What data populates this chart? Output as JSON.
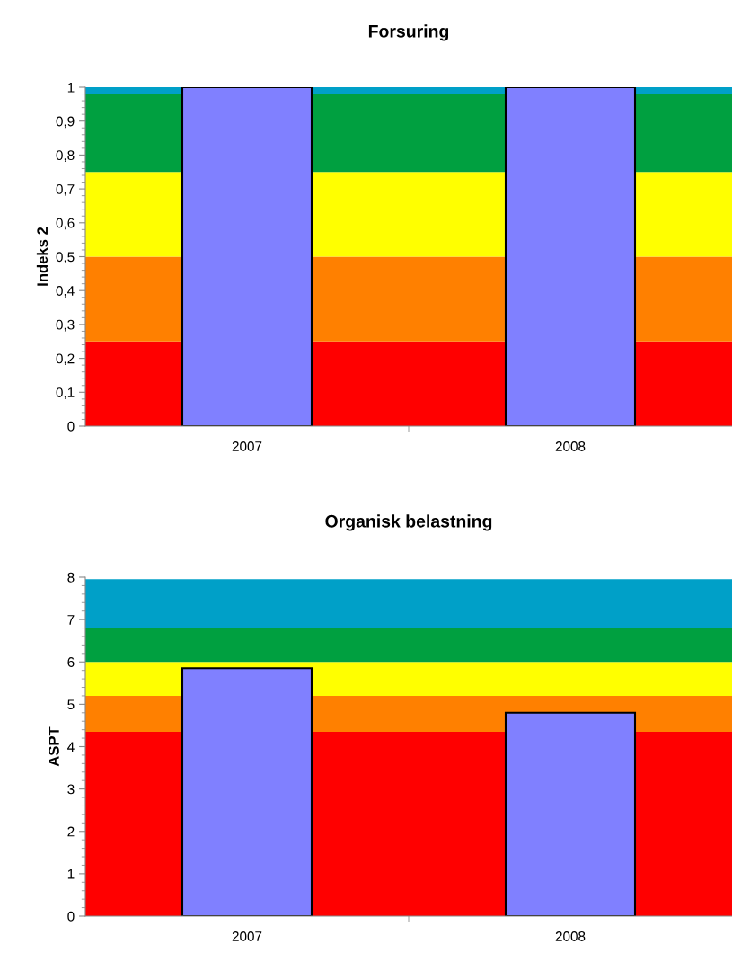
{
  "chart_data": [
    {
      "type": "bar",
      "title": "Forsuring",
      "ylabel": "Indeks 2",
      "categories": [
        "2007",
        "2008"
      ],
      "values": [
        1,
        1
      ],
      "color": "#8080ff",
      "ylim": [
        0,
        1
      ],
      "yticks": [
        0,
        {
          "value": 0.1,
          "label": "0,1"
        },
        {
          "value": 0.2,
          "label": "0,2"
        },
        {
          "value": 0.3,
          "label": "0,3"
        },
        {
          "value": 0.4,
          "label": "0,4"
        },
        {
          "value": 0.5,
          "label": "0,5"
        },
        {
          "value": 0.6,
          "label": "0,6"
        },
        {
          "value": 0.7,
          "label": "0,7"
        },
        {
          "value": 0.8,
          "label": "0,8"
        },
        {
          "value": 0.9,
          "label": "0,9"
        },
        1
      ],
      "grid": false,
      "bands": [
        {
          "axis": "y",
          "from": 0,
          "to": 0.25,
          "color": "#ff0000"
        },
        {
          "axis": "y",
          "from": 0.25,
          "to": 0.5,
          "color": "#ff8000"
        },
        {
          "axis": "y",
          "from": 0.5,
          "to": 0.75,
          "color": "#ffff00"
        },
        {
          "axis": "y",
          "from": 0.75,
          "to": 0.98,
          "color": "#00a040"
        },
        {
          "axis": "y",
          "from": 0.98,
          "to": 1,
          "color": "#00a0c8"
        }
      ]
    },
    {
      "type": "bar",
      "title": "Organisk belastning",
      "ylabel": "ASPT",
      "categories": [
        "2007",
        "2008"
      ],
      "values": [
        5.85,
        4.8
      ],
      "color": "#8080ff",
      "ylim": [
        0,
        8
      ],
      "yticks": [
        0,
        1,
        2,
        3,
        4,
        5,
        6,
        7,
        8
      ],
      "grid": false,
      "bands": [
        {
          "axis": "y",
          "from": 0,
          "to": 4.35,
          "color": "#ff0000"
        },
        {
          "axis": "y",
          "from": 4.35,
          "to": 5.2,
          "color": "#ff8000"
        },
        {
          "axis": "y",
          "from": 5.2,
          "to": 6.0,
          "color": "#ffff00"
        },
        {
          "axis": "y",
          "from": 6.0,
          "to": 6.8,
          "color": "#00a040"
        },
        {
          "axis": "y",
          "from": 6.8,
          "to": 7.95,
          "color": "#00a0c8"
        }
      ]
    }
  ]
}
